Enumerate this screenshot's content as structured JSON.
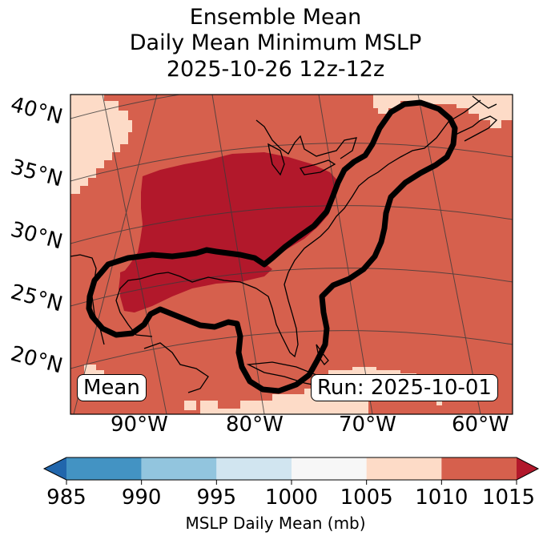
{
  "title": {
    "line1": "Ensemble Mean",
    "line2": "Daily Mean Minimum MSLP",
    "line3": "2025-10-26 12z-12z"
  },
  "map": {
    "latitude_labels": [
      "40°N",
      "35°N",
      "30°N",
      "25°N",
      "20°N"
    ],
    "longitude_labels": [
      "90°W",
      "80°W",
      "70°W",
      "60°W"
    ],
    "mean_box": "Mean",
    "run_box": "Run: 2025-10-01"
  },
  "colorbar": {
    "ticks": [
      "985",
      "990",
      "995",
      "1000",
      "1005",
      "1010",
      "1015"
    ],
    "label": "MSLP Daily Mean (mb)",
    "colors": [
      "#2166ac",
      "#4393c3",
      "#92c5de",
      "#d1e5f0",
      "#f7f7f7",
      "#fddbc7",
      "#d6604d",
      "#b2182b"
    ]
  },
  "fill_colors": {
    "background": "#d6604d",
    "low": "#b2182b",
    "high": "#fddbc7"
  }
}
